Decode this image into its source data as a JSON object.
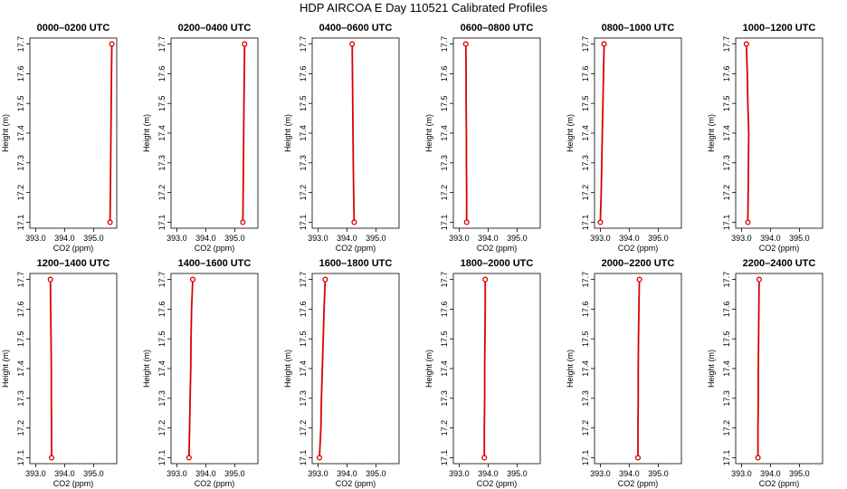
{
  "figure": {
    "title": "HDP AIRCOA E  Day 110521  Calibrated Profiles"
  },
  "colors": {
    "line": "#dd0000",
    "axis": "#000000",
    "frame": "#000000"
  },
  "chart_data": [
    {
      "type": "line",
      "title": "0000–0200 UTC",
      "xlabel": "CO2 (ppm)",
      "ylabel": "Height (m)",
      "xlim": [
        392.8,
        395.8
      ],
      "ylim": [
        17.08,
        17.72
      ],
      "xticks": [
        393.0,
        394.0,
        395.0
      ],
      "xtick_labels": [
        "393.0",
        "394.0",
        "395.0"
      ],
      "yticks": [
        17.1,
        17.2,
        17.3,
        17.4,
        17.5,
        17.6,
        17.7
      ],
      "ytick_labels": [
        "17.1",
        "17.2",
        "17.3",
        "17.4",
        "17.5",
        "17.6",
        "17.7"
      ],
      "series": [
        {
          "x": [
            395.57,
            395.58,
            395.59,
            395.6,
            395.61,
            395.62,
            395.63
          ],
          "y": [
            17.1,
            17.2,
            17.3,
            17.4,
            17.5,
            17.6,
            17.7
          ]
        }
      ],
      "markers": {
        "x": [
          395.57,
          395.63
        ],
        "y": [
          17.1,
          17.7
        ]
      }
    },
    {
      "type": "line",
      "title": "0200–0400 UTC",
      "xlabel": "CO2 (ppm)",
      "ylabel": "Height (m)",
      "xlim": [
        392.8,
        395.8
      ],
      "ylim": [
        17.08,
        17.72
      ],
      "xticks": [
        393.0,
        394.0,
        395.0
      ],
      "xtick_labels": [
        "393.0",
        "394.0",
        "395.0"
      ],
      "yticks": [
        17.1,
        17.2,
        17.3,
        17.4,
        17.5,
        17.6,
        17.7
      ],
      "ytick_labels": [
        "17.1",
        "17.2",
        "17.3",
        "17.4",
        "17.5",
        "17.6",
        "17.7"
      ],
      "series": [
        {
          "x": [
            395.28,
            395.29,
            395.3,
            395.31,
            395.32,
            395.33,
            395.34
          ],
          "y": [
            17.1,
            17.2,
            17.3,
            17.4,
            17.5,
            17.6,
            17.7
          ]
        }
      ],
      "markers": {
        "x": [
          395.28,
          395.34
        ],
        "y": [
          17.1,
          17.7
        ]
      }
    },
    {
      "type": "line",
      "title": "0400–0600 UTC",
      "xlabel": "CO2 (ppm)",
      "ylabel": "Height (m)",
      "xlim": [
        392.8,
        395.8
      ],
      "ylim": [
        17.08,
        17.72
      ],
      "xticks": [
        393.0,
        394.0,
        395.0
      ],
      "xtick_labels": [
        "393.0",
        "394.0",
        "395.0"
      ],
      "yticks": [
        17.1,
        17.2,
        17.3,
        17.4,
        17.5,
        17.6,
        17.7
      ],
      "ytick_labels": [
        "17.1",
        "17.2",
        "17.3",
        "17.4",
        "17.5",
        "17.6",
        "17.7"
      ],
      "series": [
        {
          "x": [
            394.25,
            394.23,
            394.22,
            394.21,
            394.2,
            394.19,
            394.18
          ],
          "y": [
            17.1,
            17.2,
            17.3,
            17.4,
            17.5,
            17.6,
            17.7
          ]
        }
      ],
      "markers": {
        "x": [
          394.25,
          394.18
        ],
        "y": [
          17.1,
          17.7
        ]
      }
    },
    {
      "type": "line",
      "title": "0600–0800 UTC",
      "xlabel": "CO2 (ppm)",
      "ylabel": "Height (m)",
      "xlim": [
        392.8,
        395.8
      ],
      "ylim": [
        17.08,
        17.72
      ],
      "xticks": [
        393.0,
        394.0,
        395.0
      ],
      "xtick_labels": [
        "393.0",
        "394.0",
        "395.0"
      ],
      "yticks": [
        17.1,
        17.2,
        17.3,
        17.4,
        17.5,
        17.6,
        17.7
      ],
      "ytick_labels": [
        "17.1",
        "17.2",
        "17.3",
        "17.4",
        "17.5",
        "17.6",
        "17.7"
      ],
      "series": [
        {
          "x": [
            393.26,
            393.26,
            393.25,
            393.25,
            393.24,
            393.24,
            393.23
          ],
          "y": [
            17.1,
            17.2,
            17.3,
            17.4,
            17.5,
            17.6,
            17.7
          ]
        }
      ],
      "markers": {
        "x": [
          393.26,
          393.23
        ],
        "y": [
          17.1,
          17.7
        ]
      }
    },
    {
      "type": "line",
      "title": "0800–1000 UTC",
      "xlabel": "CO2 (ppm)",
      "ylabel": "Height (m)",
      "xlim": [
        392.8,
        395.8
      ],
      "ylim": [
        17.08,
        17.72
      ],
      "xticks": [
        393.0,
        394.0,
        395.0
      ],
      "xtick_labels": [
        "393.0",
        "394.0",
        "395.0"
      ],
      "yticks": [
        17.1,
        17.2,
        17.3,
        17.4,
        17.5,
        17.6,
        17.7
      ],
      "ytick_labels": [
        "17.1",
        "17.2",
        "17.3",
        "17.4",
        "17.5",
        "17.6",
        "17.7"
      ],
      "series": [
        {
          "x": [
            393.0,
            393.03,
            393.05,
            393.07,
            393.09,
            393.11,
            393.13
          ],
          "y": [
            17.1,
            17.2,
            17.3,
            17.4,
            17.5,
            17.6,
            17.7
          ]
        }
      ],
      "markers": {
        "x": [
          393.0,
          393.13
        ],
        "y": [
          17.1,
          17.7
        ]
      }
    },
    {
      "type": "line",
      "title": "1000–1200 UTC",
      "xlabel": "CO2 (ppm)",
      "ylabel": "Height (m)",
      "xlim": [
        392.8,
        395.8
      ],
      "ylim": [
        17.08,
        17.72
      ],
      "xticks": [
        393.0,
        394.0,
        395.0
      ],
      "xtick_labels": [
        "393.0",
        "394.0",
        "395.0"
      ],
      "yticks": [
        17.1,
        17.2,
        17.3,
        17.4,
        17.5,
        17.6,
        17.7
      ],
      "ytick_labels": [
        "17.1",
        "17.2",
        "17.3",
        "17.4",
        "17.5",
        "17.6",
        "17.7"
      ],
      "series": [
        {
          "x": [
            393.22,
            393.23,
            393.24,
            393.25,
            393.22,
            393.2,
            393.17
          ],
          "y": [
            17.1,
            17.2,
            17.3,
            17.4,
            17.5,
            17.6,
            17.7
          ]
        }
      ],
      "markers": {
        "x": [
          393.22,
          393.17
        ],
        "y": [
          17.1,
          17.7
        ]
      }
    },
    {
      "type": "line",
      "title": "1200–1400 UTC",
      "xlabel": "CO2 (ppm)",
      "ylabel": "Height (m)",
      "xlim": [
        392.8,
        395.8
      ],
      "ylim": [
        17.08,
        17.72
      ],
      "xticks": [
        393.0,
        394.0,
        395.0
      ],
      "xtick_labels": [
        "393.0",
        "394.0",
        "395.0"
      ],
      "yticks": [
        17.1,
        17.2,
        17.3,
        17.4,
        17.5,
        17.6,
        17.7
      ],
      "ytick_labels": [
        "17.1",
        "17.2",
        "17.3",
        "17.4",
        "17.5",
        "17.6",
        "17.7"
      ],
      "series": [
        {
          "x": [
            393.55,
            393.55,
            393.54,
            393.54,
            393.53,
            393.52,
            393.51
          ],
          "y": [
            17.1,
            17.2,
            17.3,
            17.4,
            17.5,
            17.6,
            17.7
          ]
        }
      ],
      "markers": {
        "x": [
          393.55,
          393.51
        ],
        "y": [
          17.1,
          17.7
        ]
      }
    },
    {
      "type": "line",
      "title": "1400–1600 UTC",
      "xlabel": "CO2 (ppm)",
      "ylabel": "Height (m)",
      "xlim": [
        392.8,
        395.8
      ],
      "ylim": [
        17.08,
        17.72
      ],
      "xticks": [
        393.0,
        394.0,
        395.0
      ],
      "xtick_labels": [
        "393.0",
        "394.0",
        "395.0"
      ],
      "yticks": [
        17.1,
        17.2,
        17.3,
        17.4,
        17.5,
        17.6,
        17.7
      ],
      "ytick_labels": [
        "17.1",
        "17.2",
        "17.3",
        "17.4",
        "17.5",
        "17.6",
        "17.7"
      ],
      "series": [
        {
          "x": [
            393.42,
            393.44,
            393.46,
            393.48,
            393.49,
            393.51,
            393.55
          ],
          "y": [
            17.1,
            17.2,
            17.3,
            17.4,
            17.5,
            17.6,
            17.7
          ]
        }
      ],
      "markers": {
        "x": [
          393.42,
          393.55
        ],
        "y": [
          17.1,
          17.7
        ]
      }
    },
    {
      "type": "line",
      "title": "1600–1800 UTC",
      "xlabel": "CO2 (ppm)",
      "ylabel": "Height (m)",
      "xlim": [
        392.8,
        395.8
      ],
      "ylim": [
        17.08,
        17.72
      ],
      "xticks": [
        393.0,
        394.0,
        395.0
      ],
      "xtick_labels": [
        "393.0",
        "394.0",
        "395.0"
      ],
      "yticks": [
        17.1,
        17.2,
        17.3,
        17.4,
        17.5,
        17.6,
        17.7
      ],
      "ytick_labels": [
        "17.1",
        "17.2",
        "17.3",
        "17.4",
        "17.5",
        "17.6",
        "17.7"
      ],
      "series": [
        {
          "x": [
            393.05,
            393.1,
            393.12,
            393.15,
            393.18,
            393.21,
            393.25
          ],
          "y": [
            17.1,
            17.2,
            17.3,
            17.4,
            17.5,
            17.6,
            17.7
          ]
        }
      ],
      "markers": {
        "x": [
          393.05,
          393.25
        ],
        "y": [
          17.1,
          17.7
        ]
      }
    },
    {
      "type": "line",
      "title": "1800–2000 UTC",
      "xlabel": "CO2 (ppm)",
      "ylabel": "Height (m)",
      "xlim": [
        392.8,
        395.8
      ],
      "ylim": [
        17.08,
        17.72
      ],
      "xticks": [
        393.0,
        394.0,
        395.0
      ],
      "xtick_labels": [
        "393.0",
        "394.0",
        "395.0"
      ],
      "yticks": [
        17.1,
        17.2,
        17.3,
        17.4,
        17.5,
        17.6,
        17.7
      ],
      "ytick_labels": [
        "17.1",
        "17.2",
        "17.3",
        "17.4",
        "17.5",
        "17.6",
        "17.7"
      ],
      "series": [
        {
          "x": [
            393.87,
            393.87,
            393.88,
            393.88,
            393.89,
            393.9,
            393.9
          ],
          "y": [
            17.1,
            17.2,
            17.3,
            17.4,
            17.5,
            17.6,
            17.7
          ]
        }
      ],
      "markers": {
        "x": [
          393.87,
          393.9
        ],
        "y": [
          17.1,
          17.7
        ]
      }
    },
    {
      "type": "line",
      "title": "2000–2200 UTC",
      "xlabel": "CO2 (ppm)",
      "ylabel": "Height (m)",
      "xlim": [
        392.8,
        395.8
      ],
      "ylim": [
        17.08,
        17.72
      ],
      "xticks": [
        393.0,
        394.0,
        395.0
      ],
      "xtick_labels": [
        "393.0",
        "394.0",
        "395.0"
      ],
      "yticks": [
        17.1,
        17.2,
        17.3,
        17.4,
        17.5,
        17.6,
        17.7
      ],
      "ytick_labels": [
        "17.1",
        "17.2",
        "17.3",
        "17.4",
        "17.5",
        "17.6",
        "17.7"
      ],
      "series": [
        {
          "x": [
            394.3,
            394.3,
            394.31,
            394.31,
            394.32,
            394.33,
            394.35
          ],
          "y": [
            17.1,
            17.2,
            17.3,
            17.4,
            17.5,
            17.6,
            17.7
          ]
        }
      ],
      "markers": {
        "x": [
          394.3,
          394.35
        ],
        "y": [
          17.1,
          17.7
        ]
      }
    },
    {
      "type": "line",
      "title": "2200–2400 UTC",
      "xlabel": "CO2 (ppm)",
      "ylabel": "Height (m)",
      "xlim": [
        392.8,
        395.8
      ],
      "ylim": [
        17.08,
        17.72
      ],
      "xticks": [
        393.0,
        394.0,
        395.0
      ],
      "xtick_labels": [
        "393.0",
        "394.0",
        "395.0"
      ],
      "yticks": [
        17.1,
        17.2,
        17.3,
        17.4,
        17.5,
        17.6,
        17.7
      ],
      "ytick_labels": [
        "17.1",
        "17.2",
        "17.3",
        "17.4",
        "17.5",
        "17.6",
        "17.7"
      ],
      "series": [
        {
          "x": [
            393.57,
            393.57,
            393.58,
            393.58,
            393.59,
            393.6,
            393.61
          ],
          "y": [
            17.1,
            17.2,
            17.3,
            17.4,
            17.5,
            17.6,
            17.7
          ]
        }
      ],
      "markers": {
        "x": [
          393.57,
          393.61
        ],
        "y": [
          17.1,
          17.7
        ]
      }
    }
  ]
}
